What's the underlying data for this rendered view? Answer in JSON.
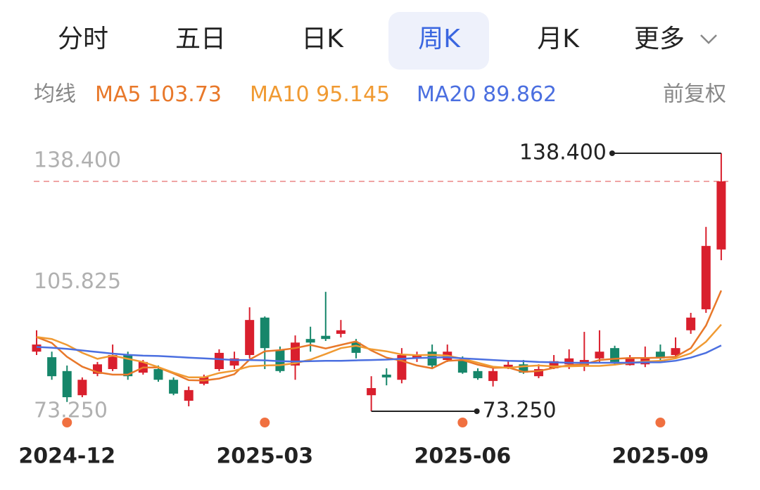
{
  "tabs": [
    "分时",
    "五日",
    "日K",
    "周K",
    "月K",
    "更多"
  ],
  "active_tab_index": 3,
  "legend_title": "均线",
  "adjustment": "前复权",
  "chart_data": {
    "type": "candlestick",
    "categories": [
      null,
      null,
      "2024-12",
      null,
      null,
      null,
      null,
      null,
      null,
      null,
      null,
      null,
      null,
      null,
      null,
      "2025-03",
      null,
      null,
      null,
      null,
      null,
      null,
      null,
      null,
      null,
      null,
      null,
      null,
      "2025-06",
      null,
      null,
      null,
      null,
      null,
      null,
      null,
      null,
      null,
      null,
      null,
      null,
      "2025-09",
      null,
      null,
      null,
      null
    ],
    "open": [
      88.3,
      86.9,
      83.4,
      77.3,
      82.7,
      83.9,
      87.45,
      83.0,
      83.9,
      81.2,
      75.9,
      80.2,
      83.9,
      84.8,
      87.45,
      96.9,
      88.7,
      84.8,
      91.5,
      92.3,
      92.8,
      90.6,
      77.3,
      82.5,
      81.2,
      86.6,
      88.3,
      86.2,
      86.2,
      83.4,
      80.9,
      84.1,
      85.1,
      82.1,
      84.1,
      85.1,
      84.8,
      86.6,
      89.2,
      84.9,
      85.1,
      88.3,
      87.45,
      93.7,
      99.0,
      114.1
    ],
    "high": [
      93.7,
      88.3,
      84.8,
      81.8,
      85.7,
      90.1,
      88.3,
      86.2,
      84.8,
      81.8,
      79.5,
      82.5,
      88.9,
      88.3,
      99.5,
      97.2,
      89.6,
      92.4,
      94.6,
      103.4,
      96.3,
      91.5,
      82.1,
      84.1,
      89.2,
      88.3,
      90.1,
      90.1,
      87.1,
      84.1,
      84.1,
      86.2,
      86.2,
      85.1,
      87.45,
      88.9,
      93.3,
      93.7,
      89.8,
      87.45,
      89.6,
      90.1,
      91.9,
      98.1,
      119.8,
      138.4
    ],
    "low": [
      87.45,
      81.2,
      75.6,
      76.8,
      82.1,
      83.4,
      81.2,
      82.5,
      80.7,
      77.3,
      74.5,
      79.8,
      83.4,
      83.9,
      86.6,
      83.9,
      83.0,
      81.2,
      88.3,
      91.0,
      91.9,
      86.6,
      73.25,
      79.8,
      80.3,
      85.7,
      83.9,
      85.7,
      82.7,
      81.2,
      79.5,
      83.9,
      82.7,
      81.6,
      83.9,
      83.9,
      83.4,
      85.7,
      84.8,
      84.8,
      84.4,
      85.7,
      86.6,
      92.8,
      98.1,
      111.4
    ],
    "close": [
      90.1,
      82.1,
      76.8,
      81.2,
      85.1,
      87.45,
      82.1,
      85.7,
      81.2,
      77.7,
      78.6,
      81.9,
      88.0,
      86.6,
      96.3,
      89.2,
      83.4,
      90.6,
      90.6,
      91.5,
      93.7,
      88.0,
      79.1,
      81.8,
      87.45,
      87.45,
      84.8,
      88.3,
      83.0,
      81.6,
      83.4,
      85.0,
      83.0,
      83.9,
      85.9,
      86.6,
      86.2,
      88.3,
      85.7,
      86.6,
      86.9,
      86.6,
      89.2,
      96.9,
      115.0,
      131.3
    ],
    "up_color": "#d91f2d",
    "down_color": "#16866a",
    "series": [
      {
        "name": "MA5",
        "color": "#e8782a",
        "values": [
          92.0,
          90.5,
          87.0,
          84.5,
          83.1,
          82.5,
          82.5,
          84.3,
          84.3,
          82.8,
          81.1,
          81.0,
          81.5,
          82.6,
          86.3,
          88.4,
          88.7,
          89.2,
          90.0,
          89.1,
          90.0,
          90.9,
          88.6,
          86.8,
          86.0,
          84.8,
          84.1,
          86.0,
          86.2,
          85.0,
          84.2,
          84.3,
          83.2,
          83.4,
          84.2,
          84.9,
          85.1,
          86.2,
          86.5,
          86.7,
          86.7,
          86.8,
          87.0,
          89.2,
          94.9,
          103.73
        ]
      },
      {
        "name": "MA10",
        "color": "#f09a32",
        "values": [
          92.0,
          91.5,
          90.0,
          88.0,
          86.5,
          87.3,
          86.5,
          85.7,
          84.4,
          83.0,
          81.8,
          81.8,
          82.9,
          83.5,
          84.6,
          84.8,
          84.9,
          85.4,
          86.3,
          87.7,
          89.2,
          89.8,
          88.9,
          88.4,
          87.6,
          87.4,
          87.5,
          87.3,
          86.5,
          85.5,
          84.5,
          84.2,
          84.6,
          84.8,
          84.6,
          84.6,
          84.7,
          84.7,
          85.0,
          85.5,
          85.8,
          86.0,
          86.6,
          87.9,
          90.8,
          95.145
        ]
      },
      {
        "name": "MA20",
        "color": "#4b6fe0",
        "values": [
          89.5,
          89.3,
          89.0,
          88.6,
          88.2,
          87.8,
          87.5,
          87.3,
          87.2,
          87.0,
          86.8,
          86.6,
          86.4,
          86.2,
          86.2,
          86.1,
          85.9,
          85.8,
          85.9,
          86.0,
          86.0,
          86.1,
          86.2,
          86.3,
          86.5,
          86.7,
          86.8,
          86.9,
          86.6,
          86.4,
          86.2,
          86.0,
          85.9,
          85.7,
          85.6,
          85.5,
          85.5,
          85.5,
          85.5,
          85.5,
          85.6,
          85.6,
          86.0,
          86.8,
          88.0,
          89.862
        ]
      }
    ],
    "ylim": [
      73.25,
      138.4
    ],
    "yticks": [
      {
        "value": 138.4,
        "label": "138.400"
      },
      {
        "value": 105.825,
        "label": "105.825"
      },
      {
        "value": 73.25,
        "label": "73.250"
      }
    ],
    "grid": false,
    "last_price_line": true,
    "annotations": [
      {
        "index": 45,
        "value": 138.4,
        "label": "138.400"
      },
      {
        "index": 22,
        "value": 73.25,
        "label": "73.250"
      }
    ]
  }
}
